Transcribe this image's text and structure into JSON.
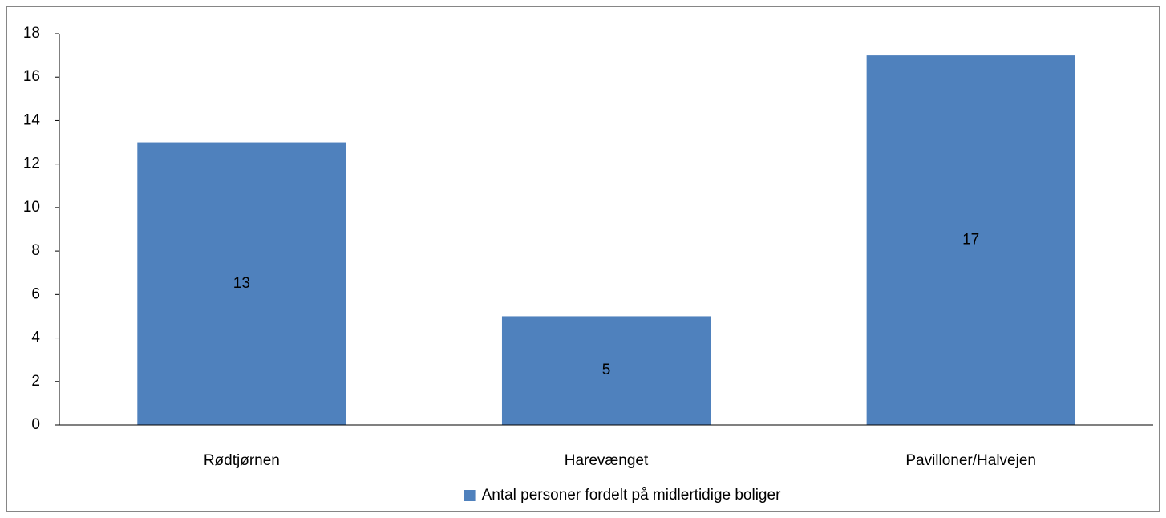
{
  "chart_data": {
    "type": "bar",
    "categories": [
      "Rødtjørnen",
      "Harevænget",
      "Pavilloner/Halvejen"
    ],
    "series": [
      {
        "name": "Antal personer fordelt på midlertidige boliger",
        "color": "#4f81bd",
        "values": [
          13,
          5,
          17
        ]
      }
    ],
    "ylim": [
      0,
      18
    ],
    "yticks": [
      0,
      2,
      4,
      6,
      8,
      10,
      12,
      14,
      16,
      18
    ],
    "grid": false,
    "legend": "bottom"
  }
}
